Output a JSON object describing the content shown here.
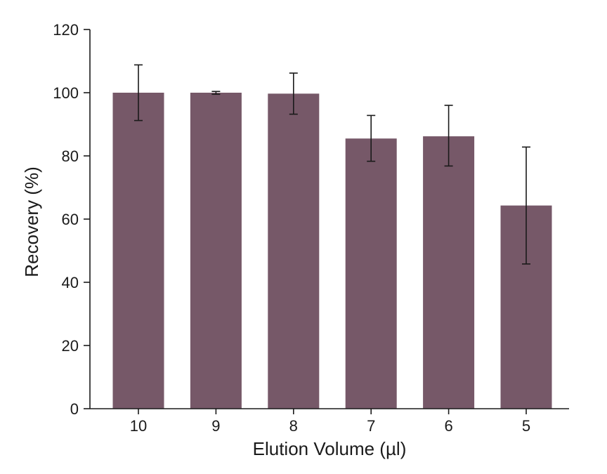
{
  "chart_data": {
    "type": "bar",
    "title": "",
    "xlabel": "Elution Volume (µl)",
    "ylabel": "Recovery (%)",
    "categories": [
      "10",
      "9",
      "8",
      "7",
      "6",
      "5"
    ],
    "values": [
      100,
      100,
      99.7,
      85.5,
      86.2,
      64.3
    ],
    "error_low": [
      91.2,
      99.5,
      93.2,
      78.3,
      76.8,
      45.8
    ],
    "error_high": [
      108.8,
      100.4,
      106.2,
      92.8,
      96.0,
      82.8
    ],
    "ylim": [
      0,
      120
    ],
    "yticks": [
      0,
      20,
      40,
      60,
      80,
      100,
      120
    ],
    "grid": false,
    "bar_color": "#765868"
  }
}
